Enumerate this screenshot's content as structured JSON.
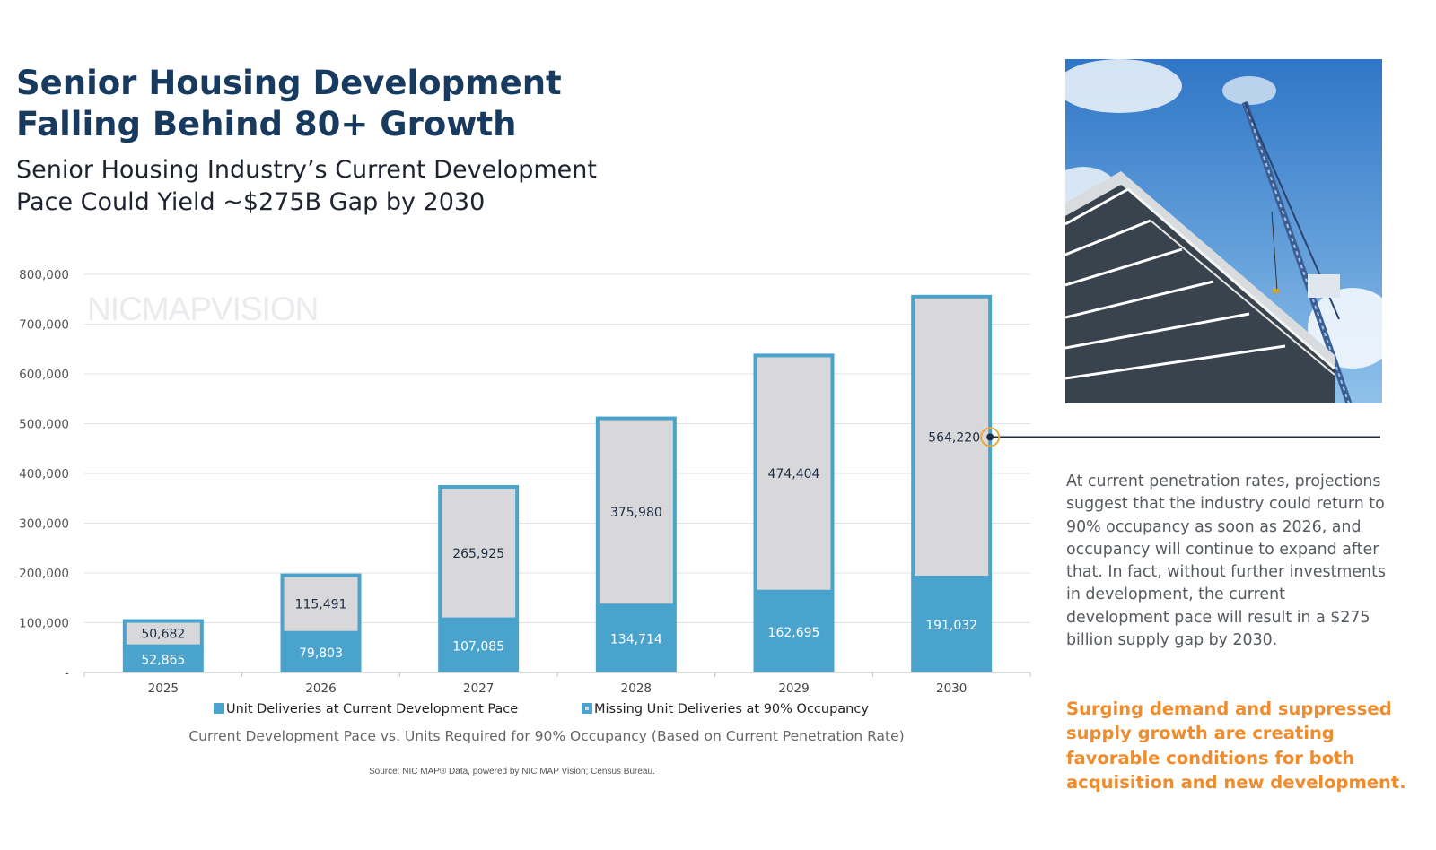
{
  "header": {
    "title": "Senior Housing Development\nFalling Behind 80+ Growth",
    "subtitle": "Senior Housing Industry’s Current Development\nPace Could Yield ~$275B Gap by 2030"
  },
  "watermark": {
    "text": "NICMAPVISION"
  },
  "source": "Source: NIC MAP® Data, powered by NIC MAP Vision; Census Bureau.",
  "side_panel": {
    "body": "At current penetration rates, projections suggest that the industry could return to 90% occupancy as soon as 2026, and occupancy will continue to expand after that. In fact, without further investments in development, the current development pace will result in a $275 billion supply gap by 2030.",
    "callout": "Surging demand and suppressed supply growth are creating favorable conditions for both acquisition and new development."
  },
  "colors": {
    "title": "#173a5e",
    "delivered": "#4aa3cc",
    "missing": "#d8d8da",
    "outline": "#4aa3cc",
    "callout": "#ef8c2d",
    "marker": "#e9a93a"
  },
  "chart_data": {
    "type": "bar",
    "stacked": true,
    "categories": [
      "2025",
      "2026",
      "2027",
      "2028",
      "2029",
      "2030"
    ],
    "series": [
      {
        "name": "Unit Deliveries at Current Development Pace",
        "values": [
          52865,
          79803,
          107085,
          134714,
          162695,
          191032
        ],
        "labels": [
          "52,865",
          "79,803",
          "107,085",
          "134,714",
          "162,695",
          "191,032"
        ]
      },
      {
        "name": "Missing Unit Deliveries at 90% Occupancy",
        "values": [
          50682,
          115491,
          265925,
          375980,
          474404,
          564220
        ],
        "labels": [
          "50,682",
          "115,491",
          "265,925",
          "375,980",
          "474,404",
          "564,220"
        ]
      }
    ],
    "yticks": [
      0,
      100000,
      200000,
      300000,
      400000,
      500000,
      600000,
      700000,
      800000
    ],
    "ytick_labels": [
      "-",
      "100,000",
      "200,000",
      "300,000",
      "400,000",
      "500,000",
      "600,000",
      "700,000",
      "800,000"
    ],
    "ylim": [
      0,
      800000
    ],
    "xlabel": "Current Development Pace vs. Units Required for 90% Occupancy (Based on Current Penetration Rate)",
    "legend_position": "bottom",
    "grid": true,
    "highlight": {
      "category": "2030",
      "series": 1
    }
  }
}
